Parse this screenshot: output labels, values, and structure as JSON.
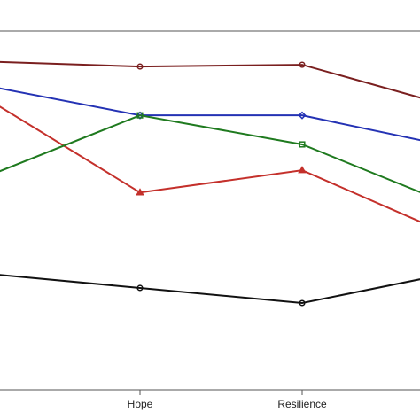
{
  "chart_data": {
    "type": "line",
    "categories": [
      null,
      "Hope",
      "Resilience",
      null
    ],
    "ylim": [
      0,
      100
    ],
    "series": [
      {
        "color": "#7a1f1f",
        "marker": "circle",
        "values": [
          91.6,
          90.1,
          90.6,
          78.0
        ]
      },
      {
        "color": "#2432b4",
        "marker": "diamond",
        "values": [
          85.2,
          76.5,
          76.5,
          67.0
        ]
      },
      {
        "color": "#c4302b",
        "marker": "triangle",
        "values": [
          82.7,
          55.0,
          61.2,
          41.5
        ]
      },
      {
        "color": "#1f7a1f",
        "marker": "square",
        "values": [
          58.5,
          76.5,
          68.4,
          50.1
        ]
      },
      {
        "color": "#111111",
        "marker": "circle",
        "values": [
          32.6,
          28.4,
          24.2,
          33.3
        ]
      }
    ]
  }
}
